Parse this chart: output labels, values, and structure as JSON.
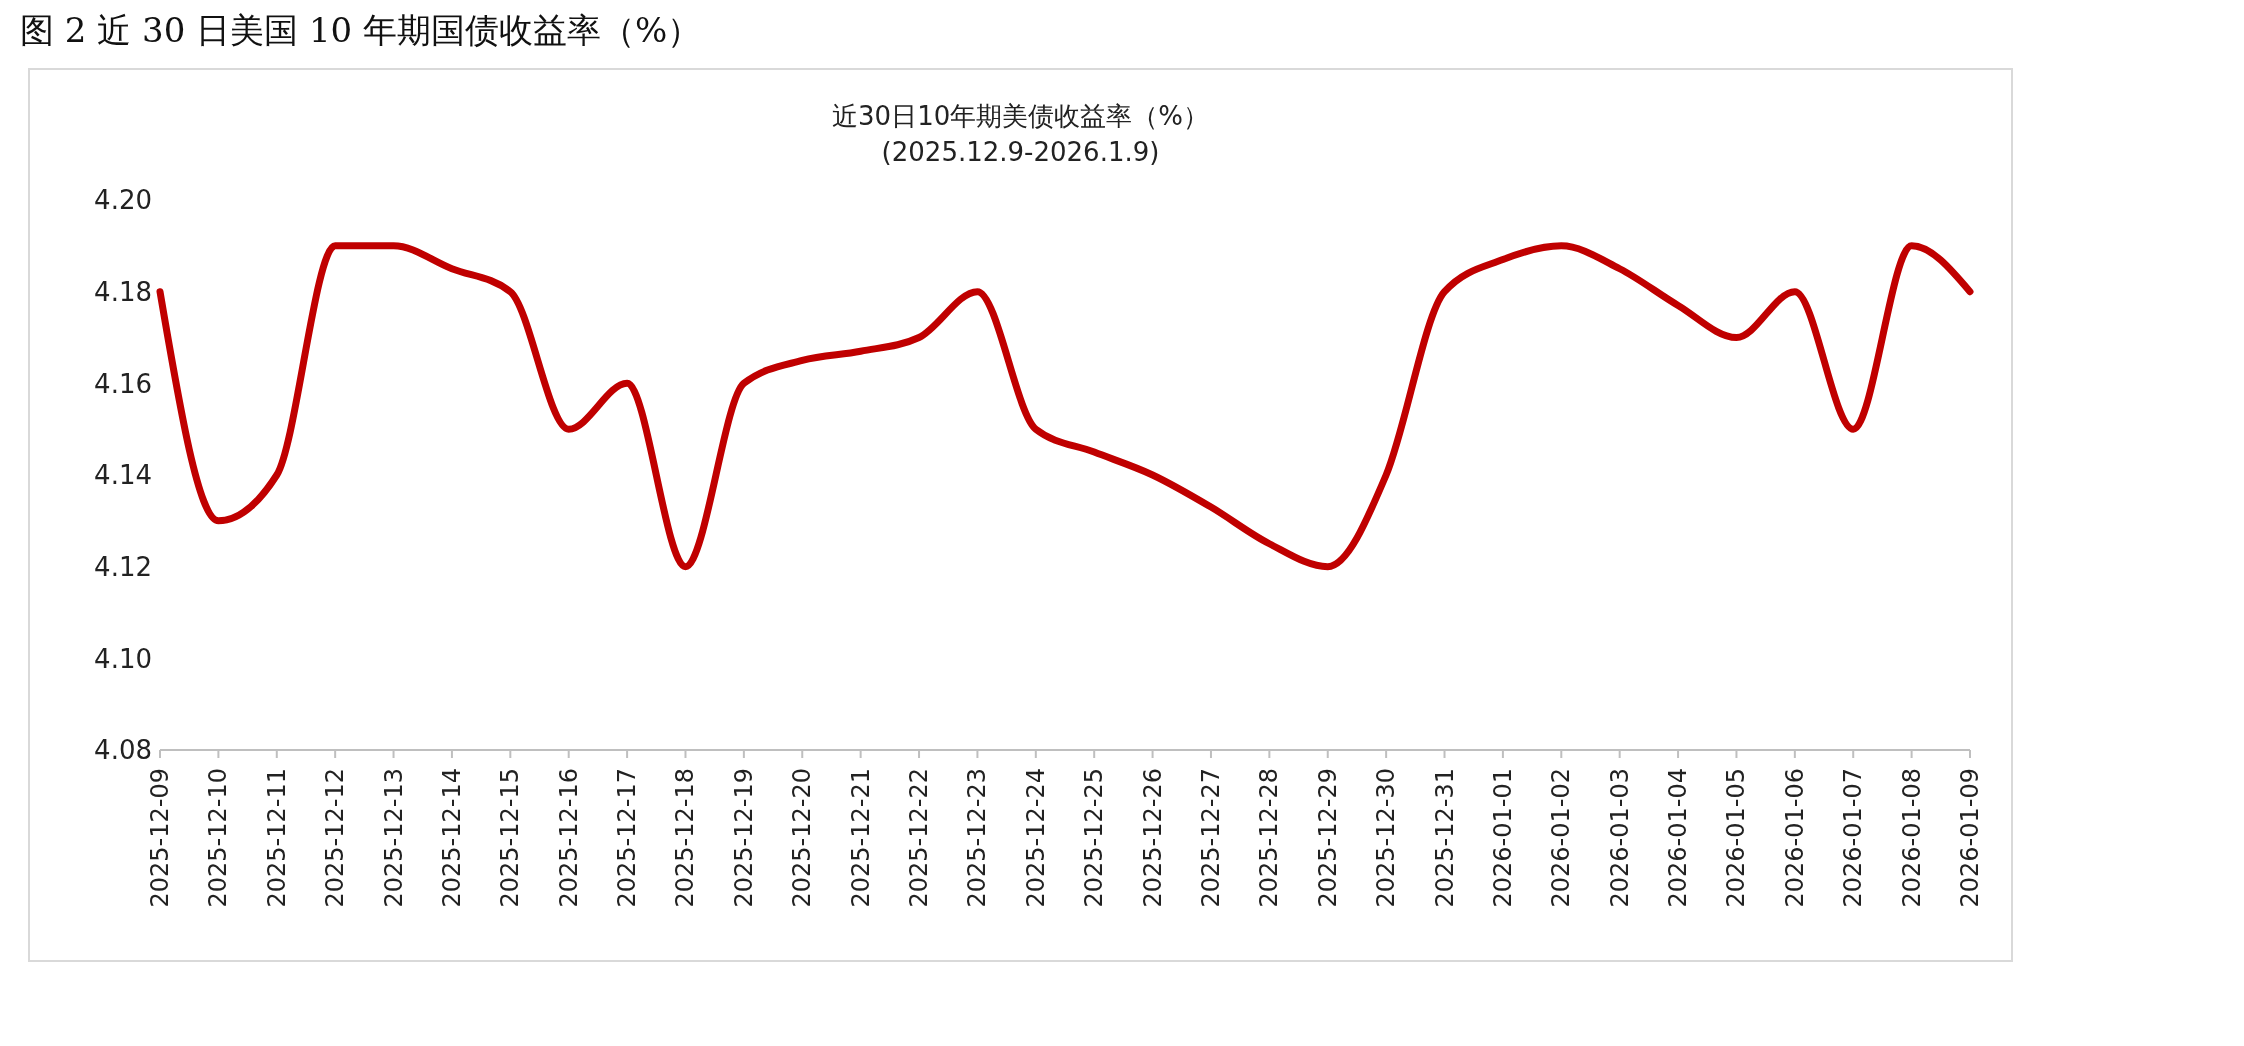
{
  "chart_data": {
    "type": "line",
    "title": "图 2 近 30 日美国 10 年期国债收益率（%）",
    "subtitle": "近30日10年期美债收益率（%）",
    "annotations": [
      "(2025.12.9-2026.1.9)"
    ],
    "categories": [
      "2025-12-09",
      "2025-12-10",
      "2025-12-11",
      "2025-12-12",
      "2025-12-13",
      "2025-12-14",
      "2025-12-15",
      "2025-12-16",
      "2025-12-17",
      "2025-12-18",
      "2025-12-19",
      "2025-12-20",
      "2025-12-21",
      "2025-12-22",
      "2025-12-23",
      "2025-12-24",
      "2025-12-25",
      "2025-12-26",
      "2025-12-27",
      "2025-12-28",
      "2025-12-29",
      "2025-12-30",
      "2025-12-31",
      "2026-01-01",
      "2026-01-02",
      "2026-01-03",
      "2026-01-04",
      "2026-01-05",
      "2026-01-06",
      "2026-01-07",
      "2026-01-08",
      "2026-01-09"
    ],
    "series": [
      {
        "color": "#c00000",
        "values": [
          4.18,
          4.13,
          4.14,
          4.19,
          4.19,
          4.185,
          4.18,
          4.15,
          4.16,
          4.12,
          4.16,
          4.165,
          4.167,
          4.17,
          4.18,
          4.15,
          4.145,
          4.14,
          4.133,
          4.125,
          4.12,
          4.14,
          4.18,
          4.187,
          4.19,
          4.185,
          4.177,
          4.17,
          4.18,
          4.15,
          4.19,
          4.18
        ]
      }
    ],
    "ylim": [
      4.08,
      4.2
    ],
    "yticks": [
      4.08,
      {
        "value": 4.1,
        "label": "4.10"
      },
      4.12,
      4.14,
      4.16,
      4.18,
      {
        "value": 4.2,
        "label": "4.20"
      }
    ],
    "grid": false,
    "legend": false,
    "marker": "none",
    "line_style": "solid"
  }
}
